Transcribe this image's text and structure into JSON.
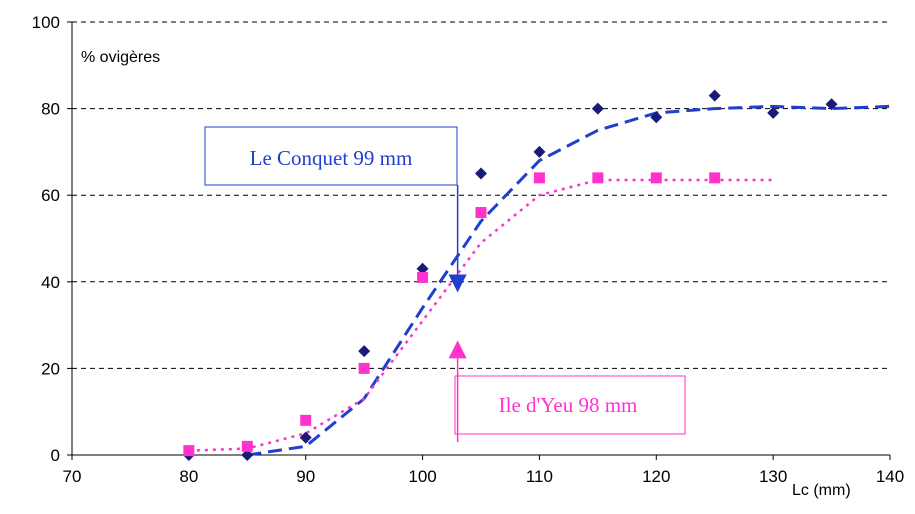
{
  "chart_data": {
    "type": "scatter",
    "title": "",
    "ylabel": "% ovigères",
    "xlabel": "Lc (mm)",
    "xlim": [
      70,
      140
    ],
    "ylim": [
      0,
      100
    ],
    "xticks": [
      70,
      80,
      90,
      100,
      110,
      120,
      130,
      140
    ],
    "yticks": [
      0,
      20,
      40,
      60,
      80,
      100
    ],
    "grid": "horizontal dashed",
    "series": [
      {
        "kind": "points",
        "marker": "diamond",
        "color": "#1a1a7a",
        "x": [
          80,
          85,
          90,
          95,
          100,
          105,
          110,
          115,
          120,
          125,
          130,
          135
        ],
        "y": [
          0,
          0,
          4,
          24,
          43,
          65,
          70,
          80,
          78,
          83,
          79,
          81
        ]
      },
      {
        "kind": "points",
        "marker": "square",
        "color": "#ff33cc",
        "x": [
          80,
          85,
          90,
          95,
          100,
          105,
          110,
          115,
          120,
          125
        ],
        "y": [
          1,
          2,
          8,
          20,
          41,
          56,
          64,
          64,
          64,
          64
        ]
      },
      {
        "kind": "curve",
        "style": "dashed",
        "color": "#1f3fcc",
        "x": [
          85,
          90,
          95,
          100,
          105,
          110,
          115,
          120,
          125,
          130,
          135,
          140
        ],
        "y": [
          0,
          2,
          13,
          34,
          54,
          68,
          75,
          79,
          80,
          80.5,
          80,
          80.5
        ]
      },
      {
        "kind": "curve",
        "style": "dotted",
        "color": "#ff33cc",
        "x": [
          80,
          85,
          90,
          95,
          100,
          105,
          110,
          115,
          120,
          125,
          130
        ],
        "y": [
          1,
          1.5,
          5,
          13,
          31,
          49,
          60,
          63.5,
          63.5,
          63.5,
          63.5
        ]
      }
    ],
    "annotations": [
      {
        "text": "Le Conquet 99 mm",
        "color": "#1f3fcc",
        "arrow_x": 103,
        "arrow_tip_y": 38,
        "arrow_base_y": 69,
        "direction": "down"
      },
      {
        "text": "Ile d'Yeu 98 mm",
        "color": "#ff33cc",
        "arrow_x": 103,
        "arrow_tip_y": 26,
        "arrow_base_y": 3,
        "direction": "up"
      }
    ]
  }
}
